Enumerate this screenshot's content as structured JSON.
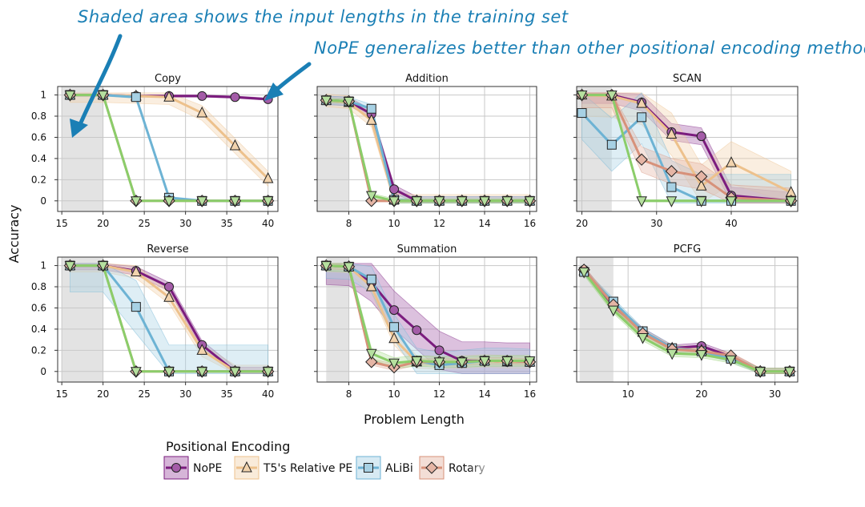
{
  "annotations": {
    "shaded_note": "Shaded area shows the input lengths in the training set",
    "nope_note": "NoPE generalizes better than other positional encoding methods"
  },
  "figure": {
    "xlabel": "Problem Length",
    "ylabel": "Accuracy",
    "legend_title": "Positional Encoding",
    "legend_placement": "bottom-center",
    "grid": true
  },
  "series_styles": [
    {
      "name": "NoPE",
      "color": "#7b1c7e",
      "fill": "#a45ca8",
      "marker": "circle"
    },
    {
      "name": "T5's Relative PE",
      "color": "#edc18c",
      "fill": "#f2d3ad",
      "marker": "triangle-up"
    },
    {
      "name": "ALiBi",
      "color": "#6db3d4",
      "fill": "#a7d1e4",
      "marker": "square"
    },
    {
      "name": "Rotary",
      "color": "#d7917a",
      "fill": "#e5b5a5",
      "marker": "diamond"
    },
    {
      "name": "",
      "color": "#8bcd6a",
      "fill": "#b6e09f",
      "marker": "triangle-down"
    }
  ],
  "chart_data": [
    {
      "type": "line",
      "title": "Copy",
      "xlim": [
        14.5,
        41.2
      ],
      "ylim": [
        -0.1,
        1.08
      ],
      "xticks": [
        15,
        20,
        25,
        30,
        35,
        40
      ],
      "yticks": [
        0,
        0.2,
        0.4,
        0.6,
        0.8,
        1
      ],
      "shaded": [
        15,
        20
      ],
      "series": [
        {
          "x": [
            16,
            20,
            24,
            28,
            32,
            36,
            40
          ],
          "values": [
            1,
            1,
            0.99,
            0.99,
            0.99,
            0.98,
            0.96
          ],
          "band": 0.01
        },
        {
          "x": [
            16,
            20,
            24,
            28,
            32,
            36,
            40
          ],
          "values": [
            1,
            1,
            0.99,
            0.98,
            0.83,
            0.52,
            0.21
          ],
          "band": 0.07
        },
        {
          "x": [
            16,
            20,
            24,
            28,
            32,
            36,
            40
          ],
          "values": [
            1,
            1,
            0.98,
            0.03,
            0,
            0,
            0
          ],
          "band": 0.01
        },
        {
          "x": [
            16,
            20,
            24,
            28,
            32,
            36,
            40
          ],
          "values": [
            1,
            1,
            0,
            0,
            0,
            0,
            0
          ],
          "band": 0.005
        },
        {
          "x": [
            16,
            20,
            24,
            28,
            32,
            36,
            40
          ],
          "values": [
            1,
            1,
            0,
            0,
            0,
            0,
            0
          ],
          "band": 0.005
        }
      ]
    },
    {
      "type": "line",
      "title": "Addition",
      "xlim": [
        6.6,
        16.3
      ],
      "ylim": [
        -0.1,
        1.08
      ],
      "xticks": [
        8,
        10,
        12,
        14,
        16
      ],
      "yticks": [
        0,
        0.2,
        0.4,
        0.6,
        0.8,
        1
      ],
      "shaded": [
        6.6,
        8
      ],
      "series": [
        {
          "x": [
            7,
            8,
            9,
            10,
            11,
            12,
            13,
            14,
            15,
            16
          ],
          "values": [
            0.95,
            0.94,
            0.82,
            0.11,
            0,
            0,
            0,
            0,
            0,
            0
          ],
          "band": 0.04
        },
        {
          "x": [
            7,
            8,
            9,
            10,
            11,
            12,
            13,
            14,
            15,
            16
          ],
          "values": [
            0.95,
            0.93,
            0.76,
            0.01,
            0,
            0,
            0,
            0,
            0,
            0
          ],
          "band": 0.06
        },
        {
          "x": [
            7,
            8,
            9,
            10,
            11,
            12,
            13,
            14,
            15,
            16
          ],
          "values": [
            0.95,
            0.94,
            0.87,
            0.01,
            0,
            0,
            0,
            0,
            0,
            0
          ],
          "band": 0.04
        },
        {
          "x": [
            7,
            8,
            9,
            10,
            11,
            12,
            13,
            14,
            15,
            16
          ],
          "values": [
            0.95,
            0.94,
            0,
            0,
            0,
            0,
            0,
            0,
            0,
            0
          ],
          "band": 0.01
        },
        {
          "x": [
            7,
            8,
            9,
            10,
            11,
            12,
            13,
            14,
            15,
            16
          ],
          "values": [
            0.95,
            0.94,
            0.05,
            0,
            0,
            0,
            0,
            0,
            0,
            0
          ],
          "band": 0.02
        }
      ]
    },
    {
      "type": "line",
      "title": "SCAN",
      "xlim": [
        19.3,
        48.9
      ],
      "ylim": [
        -0.1,
        1.08
      ],
      "xticks": [
        20,
        30,
        40
      ],
      "yticks": [
        0,
        0.2,
        0.4,
        0.6,
        0.8,
        1
      ],
      "shaded": [
        19.3,
        24
      ],
      "series": [
        {
          "x": [
            20,
            24,
            28,
            32,
            36,
            40,
            48
          ],
          "values": [
            1,
            1,
            0.93,
            0.65,
            0.61,
            0.05,
            0
          ],
          "band": 0.08
        },
        {
          "x": [
            20,
            24,
            28,
            32,
            36,
            40,
            48
          ],
          "values": [
            1,
            0.99,
            0.92,
            0.63,
            0.14,
            0.36,
            0.08
          ],
          "band": 0.2
        },
        {
          "x": [
            20,
            24,
            28,
            32,
            36,
            40,
            48
          ],
          "values": [
            0.83,
            0.53,
            0.79,
            0.13,
            0,
            0,
            0
          ],
          "band": 0.25
        },
        {
          "x": [
            20,
            24,
            28,
            32,
            36,
            40,
            48
          ],
          "values": [
            1,
            1,
            0.39,
            0.28,
            0.23,
            0.03,
            0
          ],
          "band": 0.12
        },
        {
          "x": [
            20,
            24,
            28,
            32,
            36,
            40,
            48
          ],
          "values": [
            1,
            1,
            0,
            0,
            0,
            0,
            0
          ],
          "band": 0.01
        }
      ]
    },
    {
      "type": "line",
      "title": "Reverse",
      "xlim": [
        14.5,
        41.2
      ],
      "ylim": [
        -0.1,
        1.08
      ],
      "xticks": [
        15,
        20,
        25,
        30,
        35,
        40
      ],
      "yticks": [
        0,
        0.2,
        0.4,
        0.6,
        0.8,
        1
      ],
      "shaded": [
        15,
        20
      ],
      "series": [
        {
          "x": [
            16,
            20,
            24,
            28,
            32,
            36,
            40
          ],
          "values": [
            1,
            1,
            0.95,
            0.8,
            0.25,
            0,
            0
          ],
          "band": 0.04
        },
        {
          "x": [
            16,
            20,
            24,
            28,
            32,
            36,
            40
          ],
          "values": [
            1,
            1,
            0.94,
            0.7,
            0.2,
            0,
            0
          ],
          "band": 0.06
        },
        {
          "x": [
            16,
            20,
            24,
            28,
            32,
            36,
            40
          ],
          "values": [
            1,
            1,
            0.61,
            0,
            0,
            0,
            0
          ],
          "band": 0.25
        },
        {
          "x": [
            16,
            20,
            24,
            28,
            32,
            36,
            40
          ],
          "values": [
            1,
            1,
            0,
            0,
            0,
            0,
            0
          ],
          "band": 0.005
        },
        {
          "x": [
            16,
            20,
            24,
            28,
            32,
            36,
            40
          ],
          "values": [
            1,
            1,
            0,
            0,
            0,
            0,
            0
          ],
          "band": 0.005
        }
      ]
    },
    {
      "type": "line",
      "title": "Summation",
      "xlim": [
        6.6,
        16.3
      ],
      "ylim": [
        -0.1,
        1.08
      ],
      "xticks": [
        8,
        10,
        12,
        14,
        16
      ],
      "yticks": [
        0,
        0.2,
        0.4,
        0.6,
        0.8,
        1
      ],
      "shaded": [
        7,
        8
      ],
      "series": [
        {
          "x": [
            7,
            8,
            9,
            10,
            11,
            12,
            13,
            14,
            15,
            16
          ],
          "values": [
            1,
            0.99,
            0.84,
            0.58,
            0.39,
            0.2,
            0.1,
            0.1,
            0.09,
            0.09
          ],
          "band": 0.18
        },
        {
          "x": [
            7,
            8,
            9,
            10,
            11,
            12,
            13,
            14,
            15,
            16
          ],
          "values": [
            1,
            0.99,
            0.8,
            0.31,
            0.09,
            0.08,
            0.09,
            0.1,
            0.09,
            0.09
          ],
          "band": 0.06
        },
        {
          "x": [
            7,
            8,
            9,
            10,
            11,
            12,
            13,
            14,
            15,
            16
          ],
          "values": [
            1,
            0.99,
            0.87,
            0.42,
            0.1,
            0.06,
            0.08,
            0.1,
            0.1,
            0.09
          ],
          "band": 0.12
        },
        {
          "x": [
            7,
            8,
            9,
            10,
            11,
            12,
            13,
            14,
            15,
            16
          ],
          "values": [
            1,
            0.99,
            0.09,
            0.04,
            0.09,
            0.09,
            0.09,
            0.1,
            0.1,
            0.09
          ],
          "band": 0.03
        },
        {
          "x": [
            7,
            8,
            9,
            10,
            11,
            12,
            13,
            14,
            15,
            16
          ],
          "values": [
            1,
            0.99,
            0.17,
            0.08,
            0.1,
            0.09,
            0.09,
            0.1,
            0.1,
            0.1
          ],
          "band": 0.05
        }
      ]
    },
    {
      "type": "line",
      "title": "PCFG",
      "xlim": [
        3,
        33.1
      ],
      "ylim": [
        -0.1,
        1.08
      ],
      "xticks": [
        10,
        20,
        30
      ],
      "yticks": [
        0,
        0.2,
        0.4,
        0.6,
        0.8,
        1
      ],
      "shaded": [
        3.4,
        8
      ],
      "series": [
        {
          "x": [
            4,
            8,
            12,
            16,
            20,
            24,
            28,
            32
          ],
          "values": [
            0.96,
            0.62,
            0.38,
            0.22,
            0.24,
            0.14,
            0,
            0
          ],
          "band": 0.03
        },
        {
          "x": [
            4,
            8,
            12,
            16,
            20,
            24,
            28,
            32
          ],
          "values": [
            0.95,
            0.64,
            0.37,
            0.22,
            0.2,
            0.14,
            0,
            0
          ],
          "band": 0.03
        },
        {
          "x": [
            4,
            8,
            12,
            16,
            20,
            24,
            28,
            32
          ],
          "values": [
            0.94,
            0.66,
            0.38,
            0.22,
            0.19,
            0.12,
            0,
            0
          ],
          "band": 0.03
        },
        {
          "x": [
            4,
            8,
            12,
            16,
            20,
            24,
            28,
            32
          ],
          "values": [
            0.96,
            0.63,
            0.36,
            0.21,
            0.19,
            0.15,
            0,
            0
          ],
          "band": 0.03
        },
        {
          "x": [
            4,
            8,
            12,
            16,
            20,
            24,
            28,
            32
          ],
          "values": [
            0.94,
            0.58,
            0.32,
            0.17,
            0.16,
            0.11,
            0,
            0
          ],
          "band": 0.03
        }
      ]
    }
  ]
}
